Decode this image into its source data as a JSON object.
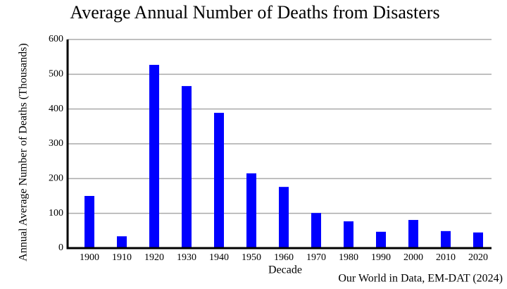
{
  "chart_data": {
    "type": "bar",
    "title": "Average Annual Number of Deaths from Disasters",
    "x_label": "Decade",
    "y_label": "Annual Average Number of Deaths (Thousands)",
    "source": "Our World in Data, EM-DAT (2024)",
    "categories": [
      "1900",
      "1910",
      "1920",
      "1930",
      "1940",
      "1950",
      "1960",
      "1970",
      "1980",
      "1990",
      "2000",
      "2010",
      "2020"
    ],
    "values": [
      150,
      34,
      527,
      466,
      389,
      215,
      176,
      101,
      77,
      47,
      81,
      49,
      45
    ],
    "color": "#0000ff",
    "ylim": [
      0,
      600
    ],
    "yticks": [
      0,
      100,
      200,
      300,
      400,
      500,
      600
    ],
    "grid": true
  }
}
